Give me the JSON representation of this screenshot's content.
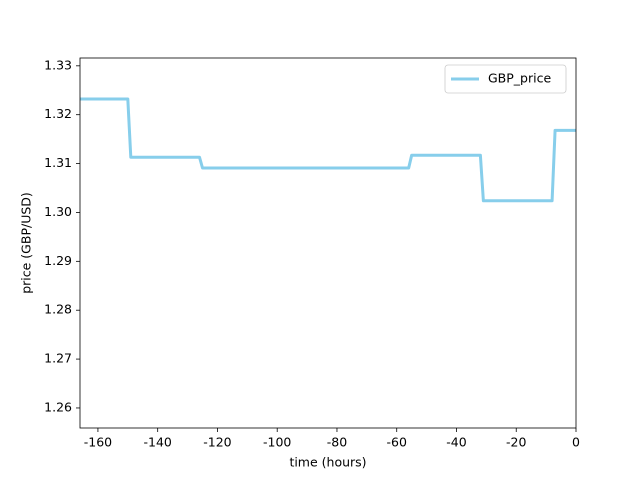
{
  "chart_data": {
    "type": "line",
    "xlabel": "time (hours)",
    "ylabel": "price (GBP/USD)",
    "x": [
      -166,
      -150,
      -149,
      -126,
      -125,
      -56,
      -55,
      -32,
      -31,
      -8,
      -7,
      0
    ],
    "series": [
      {
        "name": "GBP_price",
        "color": "#87ceeb",
        "values": [
          1.3232,
          1.3232,
          1.3113,
          1.3113,
          1.3091,
          1.3091,
          1.3117,
          1.3117,
          1.3024,
          1.3024,
          1.3168,
          1.3168
        ]
      }
    ],
    "xlim": [
      -166,
      0
    ],
    "xticks": [
      -160,
      -140,
      -120,
      -100,
      -80,
      -60,
      -40,
      -20,
      0
    ],
    "ylim": [
      1.2559,
      1.3316
    ],
    "yticks": [
      1.26,
      1.27,
      1.28,
      1.29,
      {
        "value": 1.3,
        "label": "1.30"
      },
      1.31,
      1.32,
      1.33
    ],
    "legend": "upper right"
  }
}
